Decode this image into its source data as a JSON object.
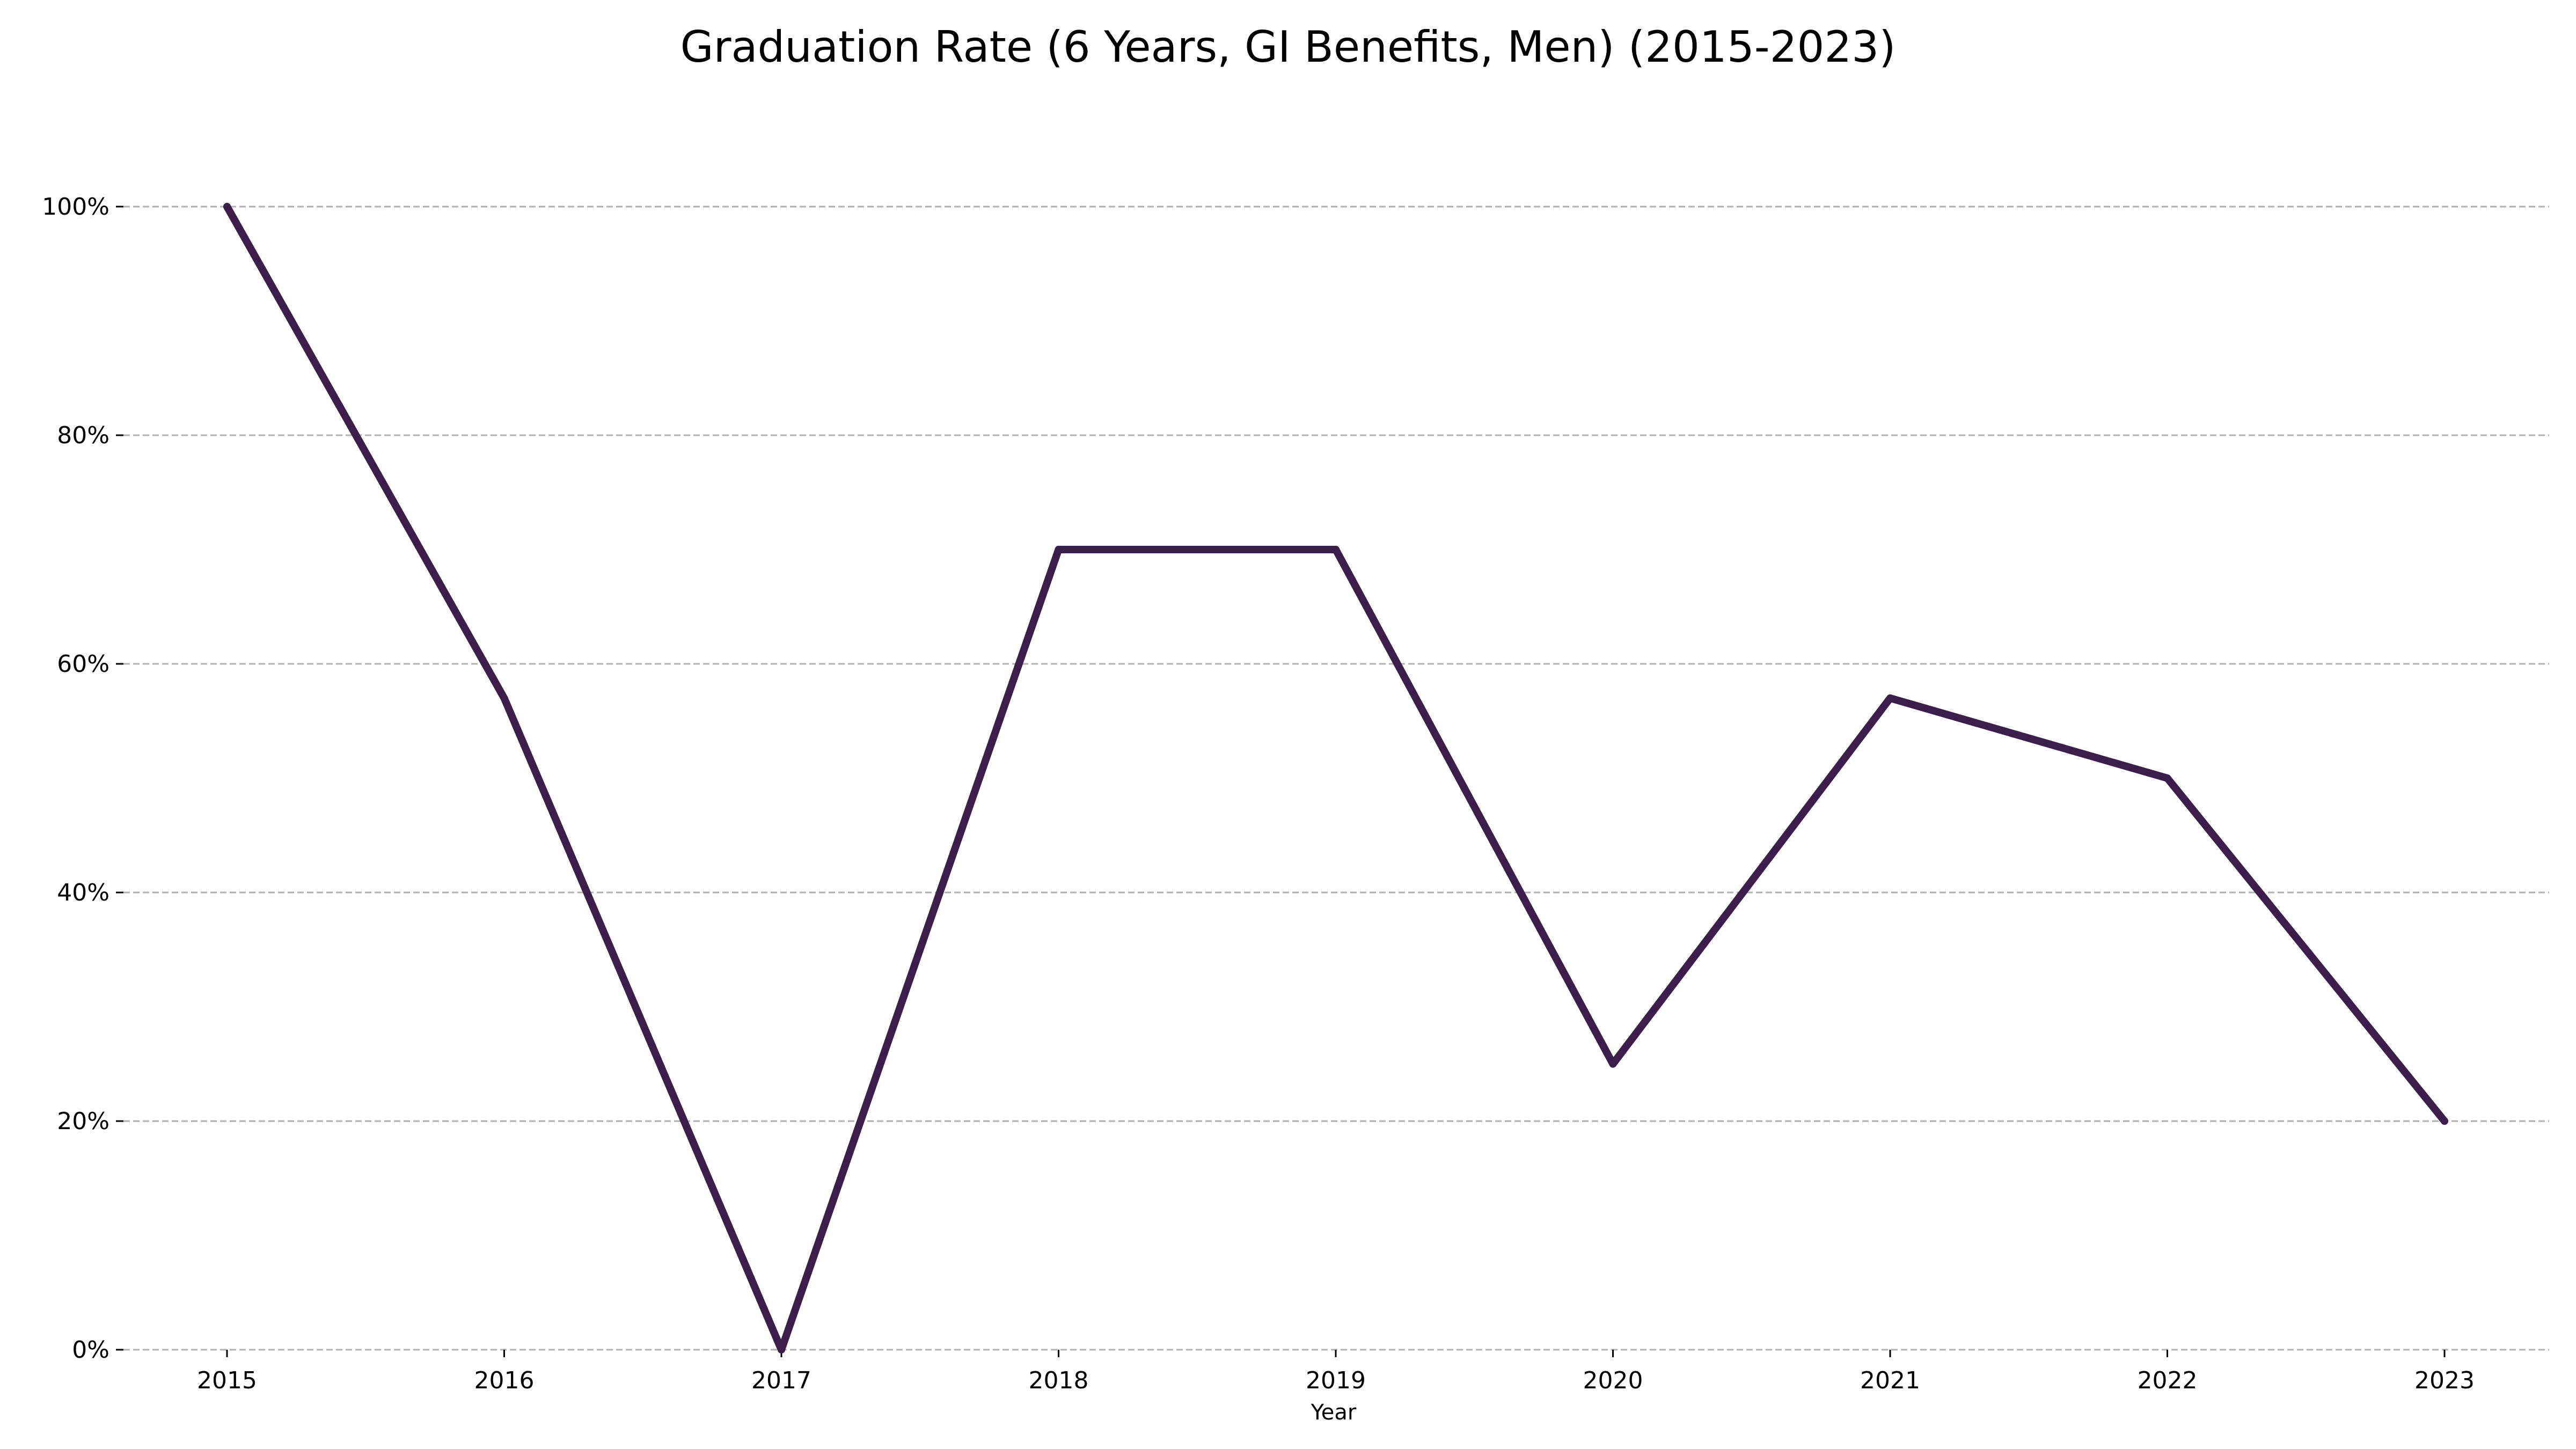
{
  "chart_data": {
    "type": "line",
    "title": "Graduation Rate (6 Years, GI Benefits, Men) (2015-2023)",
    "xlabel": "Year",
    "ylabel": "",
    "x": [
      "2015",
      "2016",
      "2017",
      "2018",
      "2019",
      "2020",
      "2021",
      "2022",
      "2023"
    ],
    "series": [
      {
        "values": [
          100,
          57,
          0,
          70,
          70,
          25,
          57,
          50,
          20
        ],
        "color": "#3b1f4a"
      }
    ],
    "ylim": [
      0,
      100
    ],
    "y_ticks": [
      0,
      20,
      40,
      60,
      80,
      100
    ],
    "y_tick_labels": [
      "0%",
      "20%",
      "40%",
      "60%",
      "80%",
      "100%"
    ],
    "grid": "horizontal dashed",
    "legend": "none"
  }
}
